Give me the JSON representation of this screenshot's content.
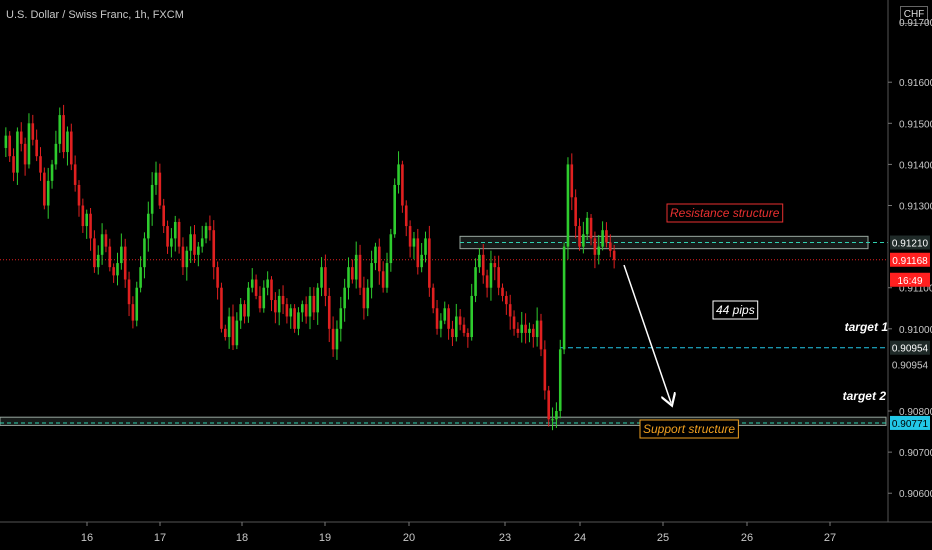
{
  "header": {
    "symbol_title": "U.S. Dollar / Swiss Franc, 1h, FXCM",
    "currency_button": "CHF"
  },
  "colors": {
    "background": "#000000",
    "bull": "#2ecc2e",
    "bear": "#e02020",
    "resistance_label": "#e83030",
    "support_label": "#f0a020",
    "target_line": "#22c8e8",
    "arrow": "#ffffff",
    "current_price_bg": "#ff2020"
  },
  "annotations": {
    "resistance": "Resistance structure",
    "support": "Support structure",
    "pips": "44 pips",
    "target1": "target 1",
    "target2": "target 2"
  },
  "price_tags": {
    "resistance": "0.91210",
    "current": "0.91168",
    "countdown": "16:49",
    "target1": "0.90954",
    "target1_dup": "0.90954",
    "support": "0.90771",
    "top_partial": "0.91700"
  },
  "chart_data": {
    "type": "candlestick",
    "title": "U.S. Dollar / Swiss Franc, 1h, FXCM",
    "ylim": [
      0.9053,
      0.918
    ],
    "y_ticks": [
      "0.91600",
      "0.91500",
      "0.91400",
      "0.91300",
      "0.91100",
      "0.91000",
      "0.90800",
      "0.90700",
      "0.90600"
    ],
    "x_ticks": [
      "16",
      "17",
      "18",
      "19",
      "20",
      "23",
      "24",
      "25",
      "26",
      "27"
    ],
    "levels": {
      "resistance_zone": [
        0.91195,
        0.91225
      ],
      "resistance_line": 0.9121,
      "current_price": 0.91168,
      "target1": 0.90954,
      "support_zone": [
        0.90765,
        0.90785
      ],
      "support_line": 0.90771
    },
    "projection": {
      "from": 0.9116,
      "to": 0.9082
    },
    "price_path": [
      0.9144,
      0.9147,
      0.9142,
      0.9138,
      0.9148,
      0.9145,
      0.914,
      0.915,
      0.9146,
      0.9142,
      0.9138,
      0.913,
      0.9136,
      0.914,
      0.9145,
      0.9152,
      0.9143,
      0.9148,
      0.914,
      0.9135,
      0.913,
      0.9125,
      0.9128,
      0.9122,
      0.9115,
      0.9118,
      0.9123,
      0.912,
      0.9115,
      0.9113,
      0.9116,
      0.912,
      0.9112,
      0.9106,
      0.9102,
      0.911,
      0.9115,
      0.9122,
      0.9128,
      0.9135,
      0.9138,
      0.913,
      0.9125,
      0.912,
      0.9122,
      0.9126,
      0.912,
      0.9115,
      0.9119,
      0.9123,
      0.9118,
      0.912,
      0.9122,
      0.9125,
      0.9124,
      0.9115,
      0.911,
      0.91,
      0.9098,
      0.9103,
      0.9096,
      0.9102,
      0.9106,
      0.9103,
      0.911,
      0.9112,
      0.9108,
      0.9105,
      0.911,
      0.9112,
      0.9107,
      0.9104,
      0.9108,
      0.9106,
      0.9103,
      0.9105,
      0.91,
      0.9104,
      0.9106,
      0.9103,
      0.9108,
      0.9104,
      0.911,
      0.9115,
      0.9108,
      0.91,
      0.9095,
      0.91,
      0.9105,
      0.911,
      0.9115,
      0.9112,
      0.9118,
      0.911,
      0.9105,
      0.911,
      0.9116,
      0.912,
      0.9114,
      0.911,
      0.9116,
      0.9123,
      0.9135,
      0.914,
      0.913,
      0.9125,
      0.912,
      0.9122,
      0.9115,
      0.9118,
      0.9122,
      0.911,
      0.9105,
      0.91,
      0.9102,
      0.9105,
      0.91,
      0.9098,
      0.9103,
      0.9101,
      0.9099,
      0.9098,
      0.9108,
      0.9115,
      0.9118,
      0.9113,
      0.911,
      0.9116,
      0.9115,
      0.911,
      0.9108,
      0.9106,
      0.9103,
      0.91,
      0.9099,
      0.9101,
      0.9099,
      0.91,
      0.9098,
      0.9102,
      0.9095,
      0.9085,
      0.9078,
      0.9078,
      0.908,
      0.9095,
      0.912,
      0.914,
      0.9132,
      0.9125,
      0.912,
      0.9123,
      0.9127,
      0.9122,
      0.9118,
      0.912,
      0.9124,
      0.9121,
      0.9119,
      0.91168
    ]
  }
}
